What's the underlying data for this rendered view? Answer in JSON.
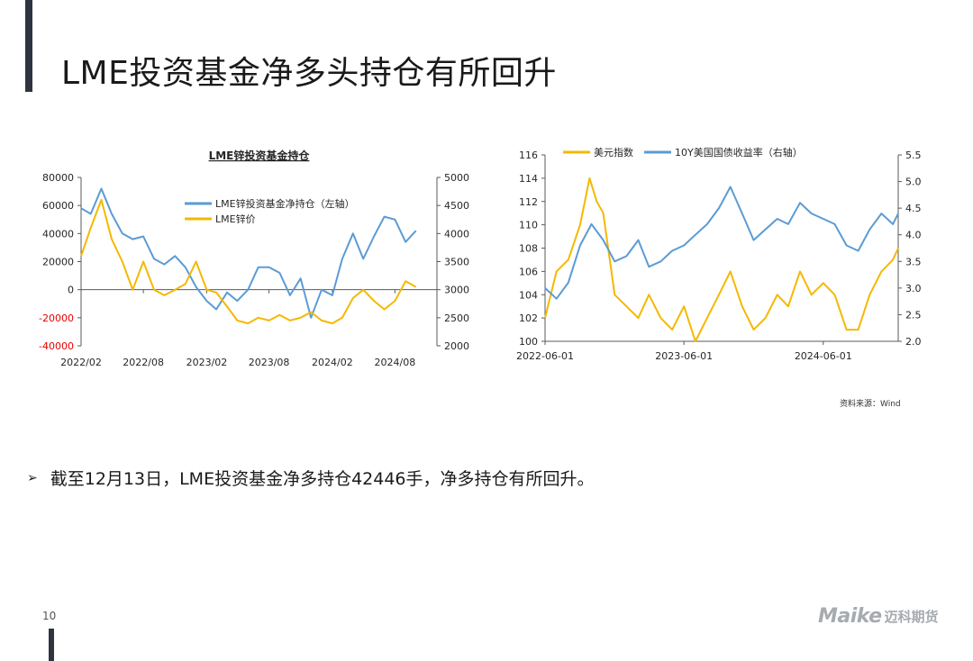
{
  "slide": {
    "title": "LME投资基金净多头持仓有所回升",
    "source": "资料来源：Wind",
    "bullet_text": "截至12月13日，LME投资基金净多持仓42446手，净多持仓有所回升。",
    "bullet_symbol": "➢",
    "page_number": "10",
    "logo_text": "Maike",
    "logo_cn": "迈科期货"
  },
  "chart_data": [
    {
      "type": "line",
      "title": "LME锌投资基金持仓",
      "x_tick_labels": [
        "2022/02",
        "2022/08",
        "2023/02",
        "2023/08",
        "2024/02",
        "2024/08"
      ],
      "x_ticks": [
        "2022-02",
        "2022-08",
        "2023-02",
        "2023-08",
        "2024-02",
        "2024-08"
      ],
      "x_range": [
        "2022-02",
        "2024-12"
      ],
      "y_left_ticks": [
        "80000",
        "60000",
        "40000",
        "20000",
        "0",
        "-20000",
        "-40000"
      ],
      "y_left_lim": [
        -40000,
        80000
      ],
      "y_right_ticks": [
        "5000",
        "4500",
        "4000",
        "3500",
        "3000",
        "2500",
        "2000"
      ],
      "y_right_lim": [
        2000,
        5000
      ],
      "grid": false,
      "legend_position": "top-right",
      "series": [
        {
          "name": "LME锌投资基金净持仓（左轴）",
          "axis": "left",
          "color": "#5b9bd5",
          "points": [
            [
              "2022-02",
              58000
            ],
            [
              "2022-03",
              54000
            ],
            [
              "2022-04",
              72000
            ],
            [
              "2022-05",
              54000
            ],
            [
              "2022-06",
              40000
            ],
            [
              "2022-07",
              36000
            ],
            [
              "2022-08",
              38000
            ],
            [
              "2022-09",
              22000
            ],
            [
              "2022-10",
              18000
            ],
            [
              "2022-11",
              24000
            ],
            [
              "2022-12",
              16000
            ],
            [
              "2023-01",
              2000
            ],
            [
              "2023-02",
              -8000
            ],
            [
              "2023-03",
              -14000
            ],
            [
              "2023-04",
              -2000
            ],
            [
              "2023-05",
              -8000
            ],
            [
              "2023-06",
              0
            ],
            [
              "2023-07",
              16000
            ],
            [
              "2023-08",
              16000
            ],
            [
              "2023-09",
              12000
            ],
            [
              "2023-10",
              -4000
            ],
            [
              "2023-11",
              8000
            ],
            [
              "2023-12",
              -20000
            ],
            [
              "2024-01",
              0
            ],
            [
              "2024-02",
              -4000
            ],
            [
              "2024-03",
              22000
            ],
            [
              "2024-04",
              40000
            ],
            [
              "2024-05",
              22000
            ],
            [
              "2024-06",
              38000
            ],
            [
              "2024-07",
              52000
            ],
            [
              "2024-08",
              50000
            ],
            [
              "2024-09",
              34000
            ],
            [
              "2024-10",
              42000
            ]
          ]
        },
        {
          "name": "LME锌价",
          "axis": "right",
          "color": "#f5b800",
          "points": [
            [
              "2022-02",
              3600
            ],
            [
              "2022-03",
              4100
            ],
            [
              "2022-04",
              4600
            ],
            [
              "2022-05",
              3900
            ],
            [
              "2022-06",
              3500
            ],
            [
              "2022-07",
              3000
            ],
            [
              "2022-08",
              3500
            ],
            [
              "2022-09",
              3000
            ],
            [
              "2022-10",
              2900
            ],
            [
              "2022-11",
              3000
            ],
            [
              "2022-12",
              3100
            ],
            [
              "2023-01",
              3500
            ],
            [
              "2023-02",
              3000
            ],
            [
              "2023-03",
              2950
            ],
            [
              "2023-04",
              2700
            ],
            [
              "2023-05",
              2450
            ],
            [
              "2023-06",
              2400
            ],
            [
              "2023-07",
              2500
            ],
            [
              "2023-08",
              2450
            ],
            [
              "2023-09",
              2550
            ],
            [
              "2023-10",
              2450
            ],
            [
              "2023-11",
              2500
            ],
            [
              "2023-12",
              2600
            ],
            [
              "2024-01",
              2450
            ],
            [
              "2024-02",
              2400
            ],
            [
              "2024-03",
              2500
            ],
            [
              "2024-04",
              2850
            ],
            [
              "2024-05",
              3000
            ],
            [
              "2024-06",
              2800
            ],
            [
              "2024-07",
              2650
            ],
            [
              "2024-08",
              2800
            ],
            [
              "2024-09",
              3150
            ],
            [
              "2024-10",
              3050
            ]
          ]
        }
      ]
    },
    {
      "type": "line",
      "title": "",
      "x_tick_labels": [
        "2022-06-01",
        "2023-06-01",
        "2024-06-01"
      ],
      "x_ticks": [
        "2022-06-01",
        "2023-06-01",
        "2024-06-01"
      ],
      "x_range": [
        "2022-06-01",
        "2024-12-15"
      ],
      "y_left_ticks": [
        "116",
        "114",
        "112",
        "110",
        "108",
        "106",
        "104",
        "102",
        "100"
      ],
      "y_left_lim": [
        100,
        116
      ],
      "y_right_ticks": [
        "5.5",
        "5.0",
        "4.5",
        "4.0",
        "3.5",
        "3.0",
        "2.5",
        "2.0"
      ],
      "y_right_lim": [
        2.0,
        5.5
      ],
      "grid": false,
      "legend_position": "top",
      "series": [
        {
          "name": "美元指数",
          "axis": "left",
          "color": "#f5b800",
          "points": [
            [
              "2022-06-01",
              102
            ],
            [
              "2022-07-01",
              106
            ],
            [
              "2022-08-01",
              107
            ],
            [
              "2022-09-01",
              110
            ],
            [
              "2022-09-26",
              114
            ],
            [
              "2022-10-15",
              112
            ],
            [
              "2022-11-01",
              111
            ],
            [
              "2022-12-01",
              104
            ],
            [
              "2023-01-01",
              103
            ],
            [
              "2023-02-01",
              102
            ],
            [
              "2023-03-01",
              104
            ],
            [
              "2023-04-01",
              102
            ],
            [
              "2023-05-01",
              101
            ],
            [
              "2023-06-01",
              103
            ],
            [
              "2023-07-01",
              100
            ],
            [
              "2023-08-01",
              102
            ],
            [
              "2023-09-01",
              104
            ],
            [
              "2023-10-01",
              106
            ],
            [
              "2023-11-01",
              103
            ],
            [
              "2023-12-01",
              101
            ],
            [
              "2024-01-01",
              102
            ],
            [
              "2024-02-01",
              104
            ],
            [
              "2024-03-01",
              103
            ],
            [
              "2024-04-01",
              106
            ],
            [
              "2024-05-01",
              104
            ],
            [
              "2024-06-01",
              105
            ],
            [
              "2024-07-01",
              104
            ],
            [
              "2024-08-01",
              101
            ],
            [
              "2024-09-01",
              101
            ],
            [
              "2024-10-01",
              104
            ],
            [
              "2024-11-01",
              106
            ],
            [
              "2024-12-01",
              107
            ],
            [
              "2024-12-15",
              108
            ]
          ]
        },
        {
          "name": "10Y美国国债收益率（右轴）",
          "axis": "right",
          "color": "#5b9bd5",
          "points": [
            [
              "2022-06-01",
              3.0
            ],
            [
              "2022-07-01",
              2.8
            ],
            [
              "2022-08-01",
              3.1
            ],
            [
              "2022-09-01",
              3.8
            ],
            [
              "2022-10-01",
              4.2
            ],
            [
              "2022-11-01",
              3.9
            ],
            [
              "2022-12-01",
              3.5
            ],
            [
              "2023-01-01",
              3.6
            ],
            [
              "2023-02-01",
              3.9
            ],
            [
              "2023-03-01",
              3.4
            ],
            [
              "2023-04-01",
              3.5
            ],
            [
              "2023-05-01",
              3.7
            ],
            [
              "2023-06-01",
              3.8
            ],
            [
              "2023-07-01",
              4.0
            ],
            [
              "2023-08-01",
              4.2
            ],
            [
              "2023-09-01",
              4.5
            ],
            [
              "2023-10-01",
              4.9
            ],
            [
              "2023-11-01",
              4.4
            ],
            [
              "2023-12-01",
              3.9
            ],
            [
              "2024-01-01",
              4.1
            ],
            [
              "2024-02-01",
              4.3
            ],
            [
              "2024-03-01",
              4.2
            ],
            [
              "2024-04-01",
              4.6
            ],
            [
              "2024-05-01",
              4.4
            ],
            [
              "2024-06-01",
              4.3
            ],
            [
              "2024-07-01",
              4.2
            ],
            [
              "2024-08-01",
              3.8
            ],
            [
              "2024-09-01",
              3.7
            ],
            [
              "2024-10-01",
              4.1
            ],
            [
              "2024-11-01",
              4.4
            ],
            [
              "2024-12-01",
              4.2
            ],
            [
              "2024-12-15",
              4.4
            ]
          ]
        }
      ]
    }
  ]
}
